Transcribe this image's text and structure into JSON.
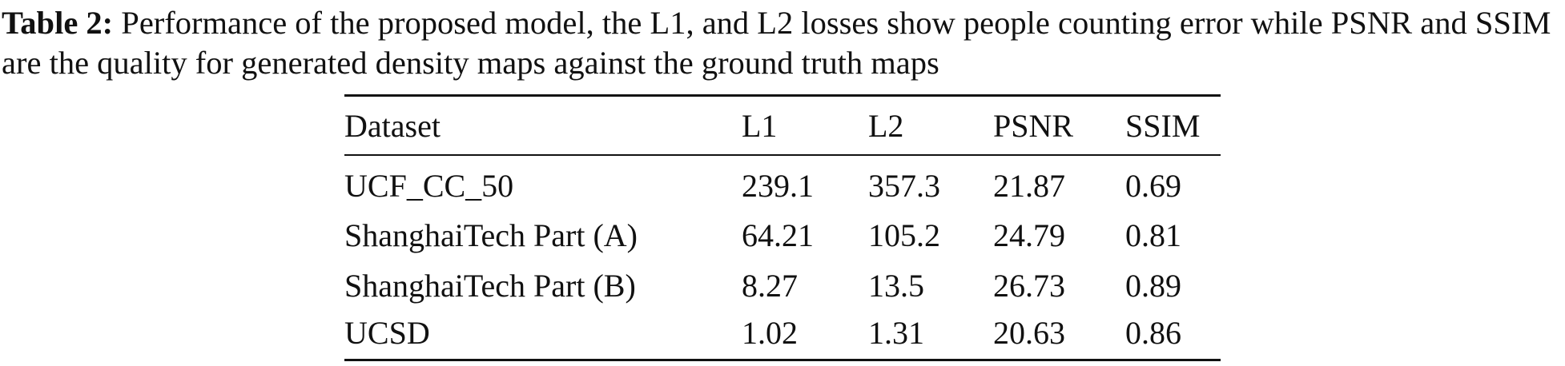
{
  "caption": {
    "label": "Table 2:",
    "text": "Performance of the proposed model, the L1, and L2 losses show people counting error while PSNR and SSIM are the quality for generated density maps against the ground truth maps"
  },
  "table": {
    "header": [
      "Dataset",
      "L1",
      "L2",
      "PSNR",
      "SSIM"
    ],
    "rows": [
      [
        "UCF_CC_50",
        "239.1",
        "357.3",
        "21.87",
        "0.69"
      ],
      [
        "ShanghaiTech Part (A)",
        "64.21",
        "105.2",
        "24.79",
        "0.81"
      ],
      [
        "ShanghaiTech Part (B)",
        "8.27",
        "13.5",
        "26.73",
        "0.89"
      ],
      [
        "UCSD",
        "1.02",
        "1.31",
        "20.63",
        "0.86"
      ]
    ]
  }
}
